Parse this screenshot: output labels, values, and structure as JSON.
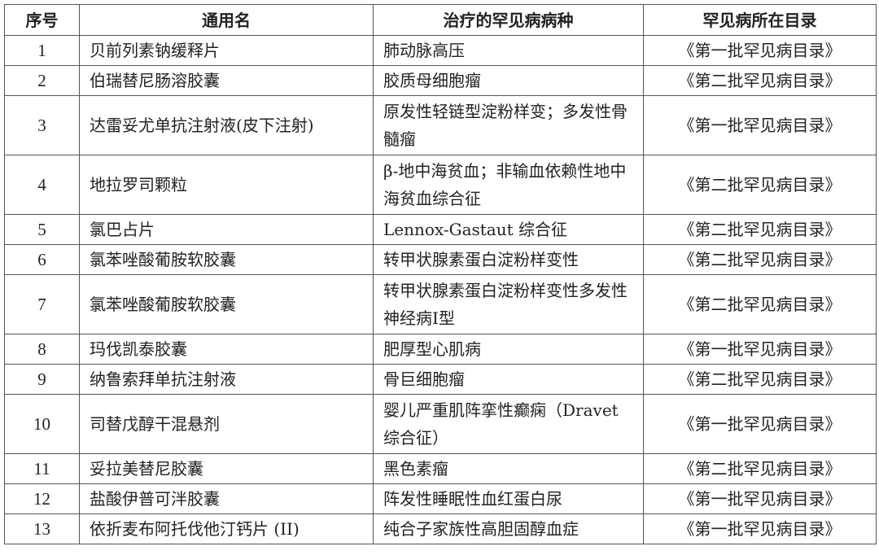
{
  "headers": [
    "序号",
    "通用名",
    "治疗的罕见病病种",
    "罕见病所在目录"
  ],
  "rows": [
    {
      "no": "1",
      "name": "贝前列素钠缓释片",
      "disease": "肺动脉高压",
      "catalog": "《第一批罕见病目录》"
    },
    {
      "no": "2",
      "name": "伯瑞替尼肠溶胶囊",
      "disease": "胶质母细胞瘤",
      "catalog": "《第二批罕见病目录》"
    },
    {
      "no": "3",
      "name": "达雷妥尤单抗注射液(皮下注射)",
      "disease": "原发性轻链型淀粉样变；多发性骨髓瘤",
      "catalog": "《第一批罕见病目录》"
    },
    {
      "no": "4",
      "name": "地拉罗司颗粒",
      "disease": "β-地中海贫血；非输血依赖性地中海贫血综合征",
      "catalog": "《第二批罕见病目录》"
    },
    {
      "no": "5",
      "name": "氯巴占片",
      "disease": "Lennox-Gastaut 综合征",
      "catalog": "《第二批罕见病目录》"
    },
    {
      "no": "6",
      "name": "氯苯唑酸葡胺软胶囊",
      "disease": "转甲状腺素蛋白淀粉样变性",
      "catalog": "《第二批罕见病目录》"
    },
    {
      "no": "7",
      "name": "氯苯唑酸葡胺软胶囊",
      "disease": "转甲状腺素蛋白淀粉样变性多发性神经病Ⅰ型",
      "catalog": "《第二批罕见病目录》"
    },
    {
      "no": "8",
      "name": "玛伐凯泰胶囊",
      "disease": "肥厚型心肌病",
      "catalog": "《第一批罕见病目录》"
    },
    {
      "no": "9",
      "name": "纳鲁索拜单抗注射液",
      "disease": "骨巨细胞瘤",
      "catalog": "《第二批罕见病目录》"
    },
    {
      "no": "10",
      "name": "司替戊醇干混悬剂",
      "disease": "婴儿严重肌阵挛性癫痫（Dravet 综合征）",
      "catalog": "《第一批罕见病目录》"
    },
    {
      "no": "11",
      "name": "妥拉美替尼胶囊",
      "disease": "黑色素瘤",
      "catalog": "《第二批罕见病目录》"
    },
    {
      "no": "12",
      "name": "盐酸伊普可泮胶囊",
      "disease": "阵发性睡眠性血红蛋白尿",
      "catalog": "《第一批罕见病目录》"
    },
    {
      "no": "13",
      "name": "依折麦布阿托伐他汀钙片 (II)",
      "disease": "纯合子家族性高胆固醇血症",
      "catalog": "《第一批罕见病目录》"
    }
  ]
}
